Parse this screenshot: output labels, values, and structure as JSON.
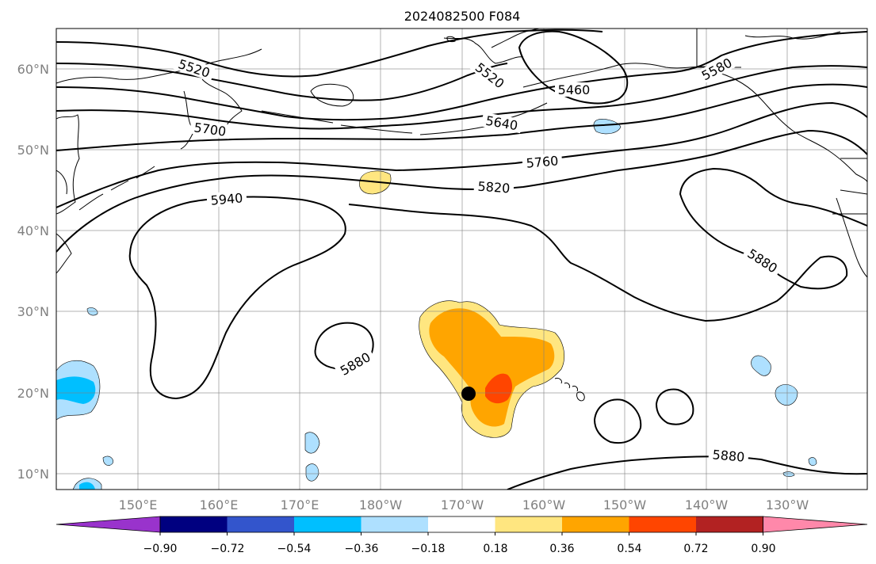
{
  "title": "2024082500 F084",
  "map": {
    "lon_ticks": [
      "150°E",
      "160°E",
      "170°E",
      "180°W",
      "170°W",
      "160°W",
      "150°W",
      "140°W",
      "130°W"
    ],
    "lat_ticks": [
      "60°N",
      "50°N",
      "40°N",
      "30°N",
      "20°N",
      "10°N"
    ],
    "contour_labels": [
      "5520",
      "5520",
      "5460",
      "5580",
      "5700",
      "5640",
      "5760",
      "5820",
      "5940",
      "5880",
      "5880",
      "5880"
    ],
    "storm_marker": "black-dot"
  },
  "colorbar": {
    "ticks": [
      "−0.90",
      "−0.72",
      "−0.54",
      "−0.36",
      "−0.18",
      "0.18",
      "0.36",
      "0.54",
      "0.72",
      "0.90"
    ],
    "colors": [
      "#9933cc",
      "#000080",
      "#3355cc",
      "#00bfff",
      "#aee0ff",
      "#ffffff",
      "#ffe680",
      "#ffa500",
      "#ff4500",
      "#b22222",
      "#ff88aa"
    ]
  }
}
